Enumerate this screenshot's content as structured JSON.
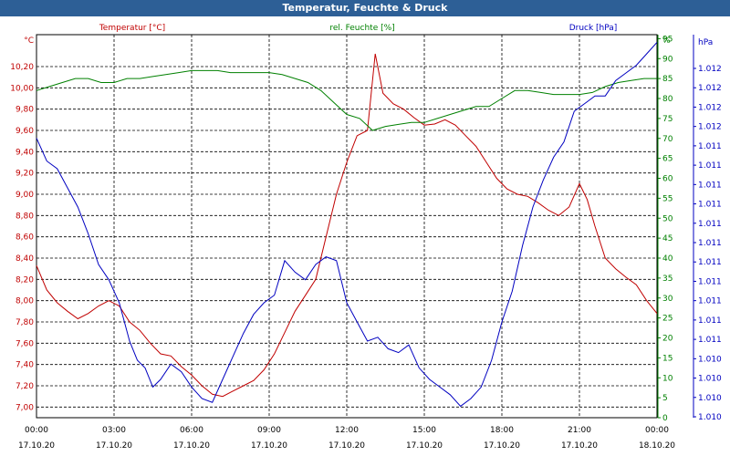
{
  "chart_data": {
    "type": "line",
    "title": "Temperatur, Feuchte & Druck",
    "x_ticks": [
      {
        "time": "00:00",
        "date": "17.10.20"
      },
      {
        "time": "03:00",
        "date": "17.10.20"
      },
      {
        "time": "06:00",
        "date": "17.10.20"
      },
      {
        "time": "09:00",
        "date": "17.10.20"
      },
      {
        "time": "12:00",
        "date": "17.10.20"
      },
      {
        "time": "15:00",
        "date": "17.10.20"
      },
      {
        "time": "18:00",
        "date": "17.10.20"
      },
      {
        "time": "21:00",
        "date": "17.10.20"
      },
      {
        "time": "00:00",
        "date": "18.10.20"
      }
    ],
    "x_range_hours": [
      0,
      24
    ],
    "grid": true,
    "axes": {
      "temperature": {
        "unit": "°C",
        "range": [
          6.9,
          10.5
        ],
        "ticks": [
          "7,00",
          "7,20",
          "7,40",
          "7,60",
          "7,80",
          "8,00",
          "8,20",
          "8,40",
          "8,60",
          "8,80",
          "9,00",
          "9,20",
          "9,40",
          "9,60",
          "9,80",
          "10,00",
          "10,20"
        ],
        "color": "#c00000"
      },
      "humidity": {
        "unit": "%",
        "range": [
          0,
          96
        ],
        "ticks": [
          "0",
          "5",
          "10",
          "15",
          "20",
          "25",
          "30",
          "35",
          "40",
          "45",
          "50",
          "55",
          "60",
          "65",
          "70",
          "75",
          "80",
          "85",
          "90",
          "95"
        ],
        "color": "#008000"
      },
      "pressure": {
        "unit": "hPa",
        "range": [
          0,
          1
        ],
        "ticks": [
          "1.010",
          "1.010",
          "1.010",
          "1.010",
          "1.011",
          "1.011",
          "1.011",
          "1.011",
          "1.011",
          "1.011",
          "1.011",
          "1.011",
          "1.011",
          "1.011",
          "1.011",
          "1.012",
          "1.012",
          "1.012",
          "1.012"
        ],
        "color": "#0000c0"
      }
    },
    "series": [
      {
        "name": "Temperatur [°C]",
        "axis": "temperature",
        "color": "#c00000",
        "points": [
          [
            0,
            8.33
          ],
          [
            0.4,
            8.1
          ],
          [
            0.8,
            7.98
          ],
          [
            1.2,
            7.9
          ],
          [
            1.6,
            7.83
          ],
          [
            2.0,
            7.88
          ],
          [
            2.4,
            7.95
          ],
          [
            2.8,
            8.0
          ],
          [
            3.2,
            7.95
          ],
          [
            3.6,
            7.8
          ],
          [
            4.0,
            7.72
          ],
          [
            4.4,
            7.6
          ],
          [
            4.8,
            7.5
          ],
          [
            5.2,
            7.48
          ],
          [
            5.6,
            7.38
          ],
          [
            6.0,
            7.3
          ],
          [
            6.4,
            7.2
          ],
          [
            6.8,
            7.12
          ],
          [
            7.2,
            7.1
          ],
          [
            7.6,
            7.15
          ],
          [
            8.0,
            7.2
          ],
          [
            8.4,
            7.25
          ],
          [
            8.8,
            7.35
          ],
          [
            9.2,
            7.5
          ],
          [
            9.6,
            7.7
          ],
          [
            10.0,
            7.9
          ],
          [
            10.4,
            8.05
          ],
          [
            10.8,
            8.2
          ],
          [
            11.2,
            8.6
          ],
          [
            11.6,
            9.0
          ],
          [
            12.0,
            9.3
          ],
          [
            12.4,
            9.55
          ],
          [
            12.8,
            9.6
          ],
          [
            13.1,
            10.32
          ],
          [
            13.4,
            9.95
          ],
          [
            13.8,
            9.85
          ],
          [
            14.2,
            9.8
          ],
          [
            14.6,
            9.72
          ],
          [
            15.0,
            9.65
          ],
          [
            15.4,
            9.66
          ],
          [
            15.8,
            9.7
          ],
          [
            16.2,
            9.65
          ],
          [
            16.6,
            9.55
          ],
          [
            17.0,
            9.45
          ],
          [
            17.4,
            9.3
          ],
          [
            17.8,
            9.15
          ],
          [
            18.2,
            9.05
          ],
          [
            18.6,
            9.0
          ],
          [
            19.0,
            8.98
          ],
          [
            19.4,
            8.92
          ],
          [
            19.8,
            8.85
          ],
          [
            20.2,
            8.8
          ],
          [
            20.6,
            8.88
          ],
          [
            21.0,
            9.1
          ],
          [
            21.3,
            8.95
          ],
          [
            21.6,
            8.7
          ],
          [
            22.0,
            8.4
          ],
          [
            22.4,
            8.3
          ],
          [
            22.8,
            8.22
          ],
          [
            23.2,
            8.15
          ],
          [
            23.6,
            8.0
          ],
          [
            24.0,
            7.88
          ]
        ]
      },
      {
        "name": "rel. Feuchte [%]",
        "axis": "humidity",
        "color": "#008000",
        "points": [
          [
            0,
            82
          ],
          [
            0.5,
            83
          ],
          [
            1.0,
            84
          ],
          [
            1.5,
            85
          ],
          [
            2.0,
            85
          ],
          [
            2.5,
            84
          ],
          [
            3.0,
            84
          ],
          [
            3.5,
            85
          ],
          [
            4.0,
            85
          ],
          [
            4.5,
            85.5
          ],
          [
            5.0,
            86
          ],
          [
            5.5,
            86.5
          ],
          [
            6.0,
            87
          ],
          [
            6.5,
            87
          ],
          [
            7.0,
            87
          ],
          [
            7.5,
            86.5
          ],
          [
            8.0,
            86.5
          ],
          [
            8.5,
            86.5
          ],
          [
            9.0,
            86.5
          ],
          [
            9.5,
            86
          ],
          [
            10.0,
            85
          ],
          [
            10.5,
            84
          ],
          [
            11.0,
            82
          ],
          [
            11.5,
            79
          ],
          [
            12.0,
            76
          ],
          [
            12.5,
            75
          ],
          [
            13.0,
            72
          ],
          [
            13.5,
            73
          ],
          [
            14.0,
            73.5
          ],
          [
            14.5,
            74
          ],
          [
            15.0,
            74
          ],
          [
            15.5,
            75
          ],
          [
            16.0,
            76
          ],
          [
            16.5,
            77
          ],
          [
            17.0,
            78
          ],
          [
            17.5,
            78
          ],
          [
            18.0,
            80
          ],
          [
            18.5,
            82
          ],
          [
            19.0,
            82
          ],
          [
            19.5,
            81.5
          ],
          [
            20.0,
            81
          ],
          [
            20.5,
            81
          ],
          [
            21.0,
            81
          ],
          [
            21.5,
            81.5
          ],
          [
            22.0,
            83
          ],
          [
            22.5,
            84
          ],
          [
            23.0,
            84.5
          ],
          [
            23.5,
            85
          ],
          [
            24.0,
            85
          ]
        ]
      },
      {
        "name": "Druck [hPa]",
        "axis": "pressure",
        "color": "#0000c0",
        "points": [
          [
            0,
            0.73
          ],
          [
            0.4,
            0.67
          ],
          [
            0.8,
            0.65
          ],
          [
            1.2,
            0.6
          ],
          [
            1.6,
            0.55
          ],
          [
            2.0,
            0.48
          ],
          [
            2.4,
            0.4
          ],
          [
            2.8,
            0.36
          ],
          [
            3.2,
            0.3
          ],
          [
            3.6,
            0.2
          ],
          [
            3.9,
            0.15
          ],
          [
            4.2,
            0.13
          ],
          [
            4.5,
            0.08
          ],
          [
            4.8,
            0.1
          ],
          [
            5.2,
            0.14
          ],
          [
            5.6,
            0.12
          ],
          [
            6.0,
            0.08
          ],
          [
            6.4,
            0.05
          ],
          [
            6.8,
            0.04
          ],
          [
            7.2,
            0.1
          ],
          [
            7.6,
            0.16
          ],
          [
            8.0,
            0.22
          ],
          [
            8.4,
            0.27
          ],
          [
            8.8,
            0.3
          ],
          [
            9.2,
            0.32
          ],
          [
            9.6,
            0.41
          ],
          [
            10.0,
            0.38
          ],
          [
            10.4,
            0.36
          ],
          [
            10.8,
            0.4
          ],
          [
            11.2,
            0.42
          ],
          [
            11.6,
            0.41
          ],
          [
            12.0,
            0.3
          ],
          [
            12.4,
            0.25
          ],
          [
            12.8,
            0.2
          ],
          [
            13.2,
            0.21
          ],
          [
            13.6,
            0.18
          ],
          [
            14.0,
            0.17
          ],
          [
            14.4,
            0.19
          ],
          [
            14.8,
            0.13
          ],
          [
            15.2,
            0.1
          ],
          [
            15.6,
            0.08
          ],
          [
            16.0,
            0.06
          ],
          [
            16.4,
            0.03
          ],
          [
            16.8,
            0.05
          ],
          [
            17.2,
            0.08
          ],
          [
            17.6,
            0.15
          ],
          [
            18.0,
            0.25
          ],
          [
            18.4,
            0.33
          ],
          [
            18.8,
            0.45
          ],
          [
            19.2,
            0.55
          ],
          [
            19.6,
            0.62
          ],
          [
            20.0,
            0.68
          ],
          [
            20.4,
            0.72
          ],
          [
            20.8,
            0.8
          ],
          [
            21.2,
            0.82
          ],
          [
            21.6,
            0.84
          ],
          [
            22.0,
            0.84
          ],
          [
            22.4,
            0.88
          ],
          [
            22.8,
            0.9
          ],
          [
            23.2,
            0.92
          ],
          [
            23.6,
            0.95
          ],
          [
            24.0,
            0.98
          ]
        ]
      }
    ]
  }
}
